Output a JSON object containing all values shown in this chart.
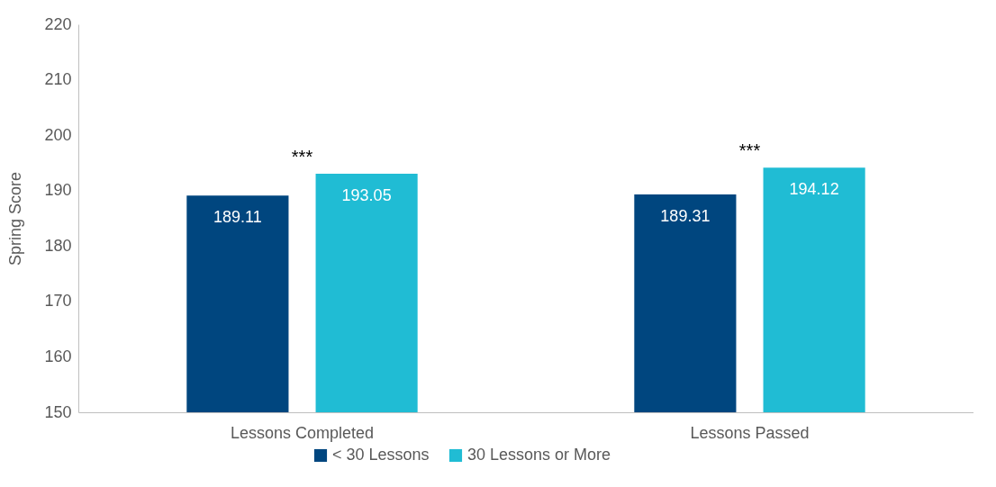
{
  "chart_data": {
    "type": "bar",
    "ylabel": "Spring Score",
    "categories": [
      "Lessons Completed",
      "Lessons Passed"
    ],
    "series": [
      {
        "name": "< 30 Lessons",
        "color": "#00467f",
        "values": [
          189.11,
          189.31
        ]
      },
      {
        "name": "30 Lessons or More",
        "color": "#20bcd4",
        "values": [
          193.05,
          194.12
        ]
      }
    ],
    "ylim": [
      150,
      220
    ],
    "yticks": [
      150,
      160,
      170,
      180,
      190,
      200,
      210,
      220
    ],
    "data_labels": true,
    "legend": "bottom",
    "grid": false,
    "annotations": [
      "***",
      "***"
    ]
  }
}
